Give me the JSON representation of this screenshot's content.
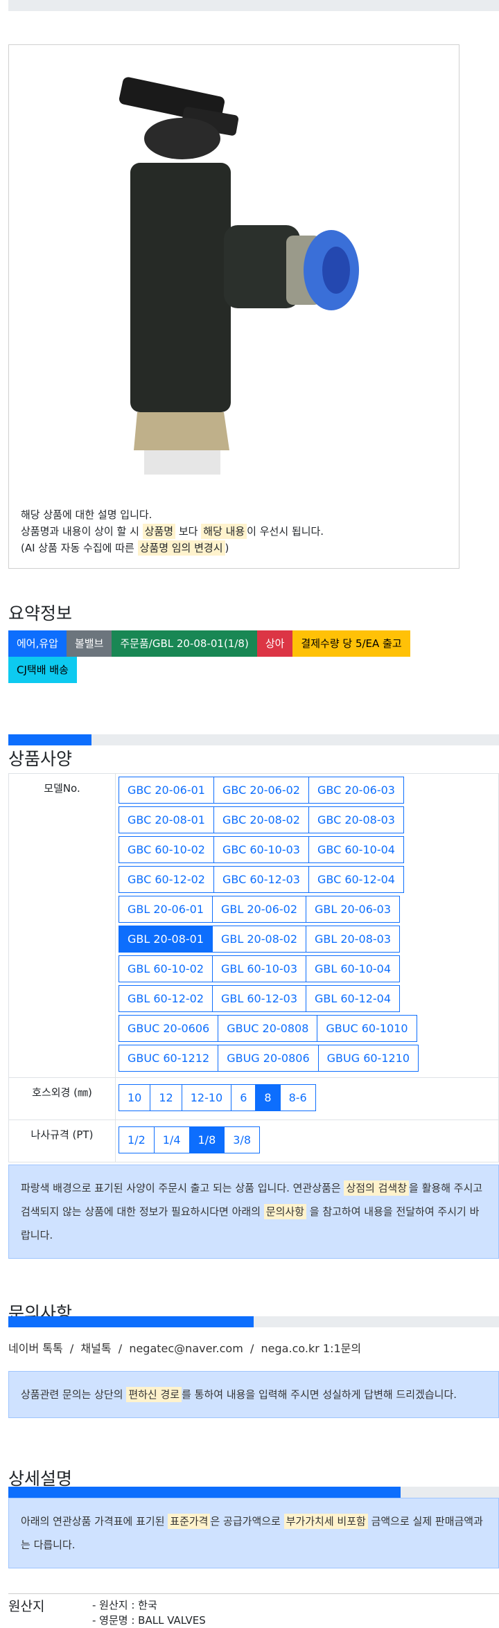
{
  "notice": {
    "line1": "해당 상품에 대한 설명 입니다.",
    "line2_a": "상품명과 내용이 상이 할 시 ",
    "line2_hl1": "상품명",
    "line2_b": " 보다 ",
    "line2_hl2": "해당 내용",
    "line2_c": "이 우선시 됩니다.",
    "line3_a": "(AI 상품 자동 수집에 따른 ",
    "line3_hl": "상품명 임의 변경시",
    "line3_b": ")"
  },
  "summary": {
    "title": "요약정보",
    "badges": [
      {
        "label": "에어,유압",
        "color": "#0d6efd",
        "text": "#ffffff"
      },
      {
        "label": "볼밸브",
        "color": "#6c757d",
        "text": "#ffffff"
      },
      {
        "label": "주문품/GBL 20-08-01(1/8)",
        "color": "#198754",
        "text": "#ffffff"
      },
      {
        "label": "상아",
        "color": "#dc3545",
        "text": "#ffffff"
      },
      {
        "label": "결제수량 당 5/EA 출고",
        "color": "#ffc107",
        "text": "#000000"
      },
      {
        "label": "CJ택배 배송",
        "color": "#0dcaf0",
        "text": "#000000"
      }
    ]
  },
  "specs": {
    "title": "상품사양",
    "progress": 0.17,
    "model_label": "모델No.",
    "models": [
      [
        "GBC 20-06-01",
        "GBC 20-06-02",
        "GBC 20-06-03"
      ],
      [
        "GBC 20-08-01",
        "GBC 20-08-02",
        "GBC 20-08-03"
      ],
      [
        "GBC 60-10-02",
        "GBC 60-10-03",
        "GBC 60-10-04"
      ],
      [
        "GBC 60-12-02",
        "GBC 60-12-03",
        "GBC 60-12-04"
      ],
      [
        "GBL 20-06-01",
        "GBL 20-06-02",
        "GBL 20-06-03"
      ],
      [
        "GBL 20-08-01",
        "GBL 20-08-02",
        "GBL 20-08-03"
      ],
      [
        "GBL 60-10-02",
        "GBL 60-10-03",
        "GBL 60-10-04"
      ],
      [
        "GBL 60-12-02",
        "GBL 60-12-03",
        "GBL 60-12-04"
      ],
      [
        "GBUC 20-0606",
        "GBUC 20-0808",
        "GBUC 60-1010"
      ],
      [
        "GBUC 60-1212",
        "GBUG 20-0806",
        "GBUG 60-1210"
      ]
    ],
    "selected_model": "GBL 20-08-01",
    "hose_label": "호스외경 (㎜)",
    "hose": [
      "10",
      "12",
      "12-10",
      "6",
      "8",
      "8-6"
    ],
    "selected_hose": "8",
    "thread_label": "나사규격 (PT)",
    "thread": [
      "1/2",
      "1/4",
      "1/8",
      "3/8"
    ],
    "selected_thread": "1/8",
    "info_a": "파랑색 배경으로 표기된 사양이 주문시 출고 되는 상품 입니다. 연관상품은 ",
    "info_hl1": "상점의 검색창",
    "info_b": "을 활용해 주시고 검색되지 않는 상품에 대한 정보가 필요하시다면 아래의 ",
    "info_hl2": "문의사항",
    "info_c": " 을 참고하여 내용을 전달하여 주시기 바랍니다."
  },
  "inquiry": {
    "title": "문의사항",
    "progress": 0.5,
    "contact": "네이버 톡톡  /  채널톡  /  negatec@naver.com  /  nega.co.kr 1:1문의",
    "info_a": "상품관련 문의는 상단의 ",
    "info_hl": "편하신 경로",
    "info_b": "를 통하여 내용을 입력해 주시면 성실하게 답변해 드리겠습니다."
  },
  "detail": {
    "title": "상세설명",
    "progress": 0.8,
    "info_a": "아래의 연관상품 가격표에 표기된 ",
    "info_hl1": "표준가격",
    "info_b": "은 공급가액으로 ",
    "info_hl2": "부가가치세 비포함",
    "info_c": " 금액으로 실제 판매금액과는 다릅니다."
  },
  "origin": {
    "label": "원산지",
    "line1": "- 원산지 : 한국",
    "line2": "- 영문명 : BALL VALVES"
  }
}
